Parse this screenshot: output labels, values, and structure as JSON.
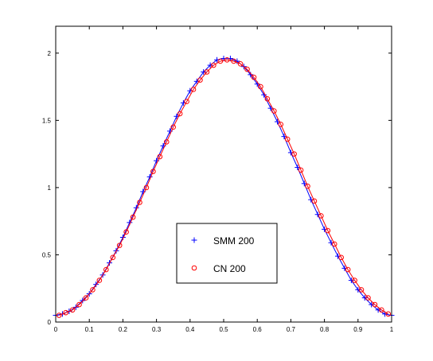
{
  "chart_data": {
    "type": "scatter",
    "title": "",
    "xlabel": "",
    "ylabel": "",
    "xlim": [
      0,
      1
    ],
    "ylim": [
      0,
      2.2
    ],
    "xticks": [
      0,
      0.1,
      0.2,
      0.3,
      0.4,
      0.5,
      0.6,
      0.7,
      0.8,
      0.9,
      1
    ],
    "xtick_labels": [
      "0",
      "0.1",
      "0.2",
      "0.3",
      "0.4",
      "0.5",
      "0.6",
      "0.7",
      "0.8",
      "0.9",
      "1"
    ],
    "yticks": [
      0,
      0.5,
      1,
      1.5,
      2
    ],
    "ytick_labels": [
      "0",
      "0.5",
      "1",
      "1.5",
      "2"
    ],
    "grid": false,
    "legend_placement": "bottom-center",
    "series": [
      {
        "name": "SMM 200",
        "marker": "plus",
        "color": "#0000ff",
        "x": [
          0,
          0.02,
          0.04,
          0.06,
          0.08,
          0.1,
          0.12,
          0.14,
          0.16,
          0.18,
          0.2,
          0.22,
          0.24,
          0.26,
          0.28,
          0.3,
          0.32,
          0.34,
          0.36,
          0.38,
          0.4,
          0.42,
          0.44,
          0.46,
          0.48,
          0.5,
          0.52,
          0.54,
          0.56,
          0.58,
          0.6,
          0.62,
          0.64,
          0.66,
          0.68,
          0.7,
          0.72,
          0.74,
          0.76,
          0.78,
          0.8,
          0.82,
          0.84,
          0.86,
          0.88,
          0.9,
          0.92,
          0.94,
          0.96,
          0.98,
          1
        ],
        "y": [
          0.05,
          0.06,
          0.08,
          0.11,
          0.16,
          0.21,
          0.28,
          0.35,
          0.44,
          0.53,
          0.63,
          0.74,
          0.85,
          0.97,
          1.08,
          1.2,
          1.31,
          1.42,
          1.53,
          1.63,
          1.72,
          1.79,
          1.86,
          1.91,
          1.95,
          1.96,
          1.96,
          1.94,
          1.9,
          1.84,
          1.77,
          1.69,
          1.59,
          1.49,
          1.38,
          1.26,
          1.15,
          1.03,
          0.91,
          0.8,
          0.69,
          0.59,
          0.49,
          0.4,
          0.31,
          0.24,
          0.18,
          0.13,
          0.09,
          0.06,
          0.05
        ]
      },
      {
        "name": "CN 200",
        "marker": "circle",
        "color": "#ff0000",
        "x": [
          0.01,
          0.03,
          0.05,
          0.07,
          0.09,
          0.11,
          0.13,
          0.15,
          0.17,
          0.19,
          0.21,
          0.23,
          0.25,
          0.27,
          0.29,
          0.31,
          0.33,
          0.35,
          0.37,
          0.39,
          0.41,
          0.43,
          0.45,
          0.47,
          0.49,
          0.51,
          0.53,
          0.55,
          0.57,
          0.59,
          0.61,
          0.63,
          0.65,
          0.67,
          0.69,
          0.71,
          0.73,
          0.75,
          0.77,
          0.79,
          0.81,
          0.83,
          0.85,
          0.87,
          0.89,
          0.91,
          0.93,
          0.95,
          0.97,
          0.99
        ],
        "y": [
          0.05,
          0.07,
          0.09,
          0.13,
          0.18,
          0.24,
          0.31,
          0.39,
          0.48,
          0.57,
          0.67,
          0.78,
          0.89,
          1.0,
          1.12,
          1.23,
          1.34,
          1.45,
          1.55,
          1.64,
          1.73,
          1.8,
          1.86,
          1.91,
          1.94,
          1.95,
          1.94,
          1.92,
          1.88,
          1.82,
          1.75,
          1.66,
          1.57,
          1.47,
          1.36,
          1.25,
          1.13,
          1.01,
          0.9,
          0.79,
          0.68,
          0.58,
          0.48,
          0.39,
          0.31,
          0.24,
          0.18,
          0.13,
          0.09,
          0.06
        ]
      }
    ]
  }
}
